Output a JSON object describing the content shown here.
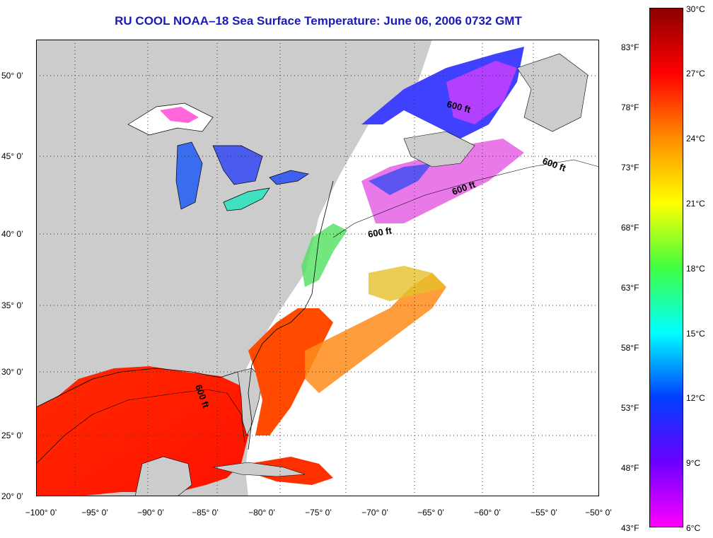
{
  "title": "RU COOL  NOAA–18  Sea Surface Temperature:  June 06, 2006 0732 GMT",
  "title_color": "#1a1ab4",
  "map": {
    "land_color": "#cccccc",
    "ocean_no_data_color": "#ffffff",
    "gridlines": "dotted",
    "latitude_labels": [
      "50° 0’",
      "45° 0’",
      "40° 0’",
      "35° 0’",
      "30° 0’",
      "25° 0’",
      "20° 0’"
    ],
    "longitude_labels": [
      "−100° 0’",
      "−95° 0’",
      "−90° 0’",
      "−85° 0’",
      "−80° 0’",
      "−75° 0’",
      "−70° 0’",
      "−65° 0’",
      "−60° 0’",
      "−55° 0’",
      "−50° 0’"
    ],
    "isobath_labels": [
      "600 ft",
      "600 ft",
      "600 ft",
      "600 ft",
      "600 ft"
    ]
  },
  "colorbar": {
    "celsius": [
      "30°C",
      "27°C",
      "24°C",
      "21°C",
      "18°C",
      "15°C",
      "12°C",
      "9°C",
      "6°C"
    ],
    "fahrenheit": [
      "83°F",
      "78°F",
      "73°F",
      "68°F",
      "63°F",
      "58°F",
      "53°F",
      "48°F",
      "43°F"
    ],
    "colors": [
      "#8b0000",
      "#ff0000",
      "#ff8c00",
      "#ffff00",
      "#40ff40",
      "#00ffff",
      "#0040ff",
      "#6a00ff",
      "#ff00ff"
    ]
  }
}
